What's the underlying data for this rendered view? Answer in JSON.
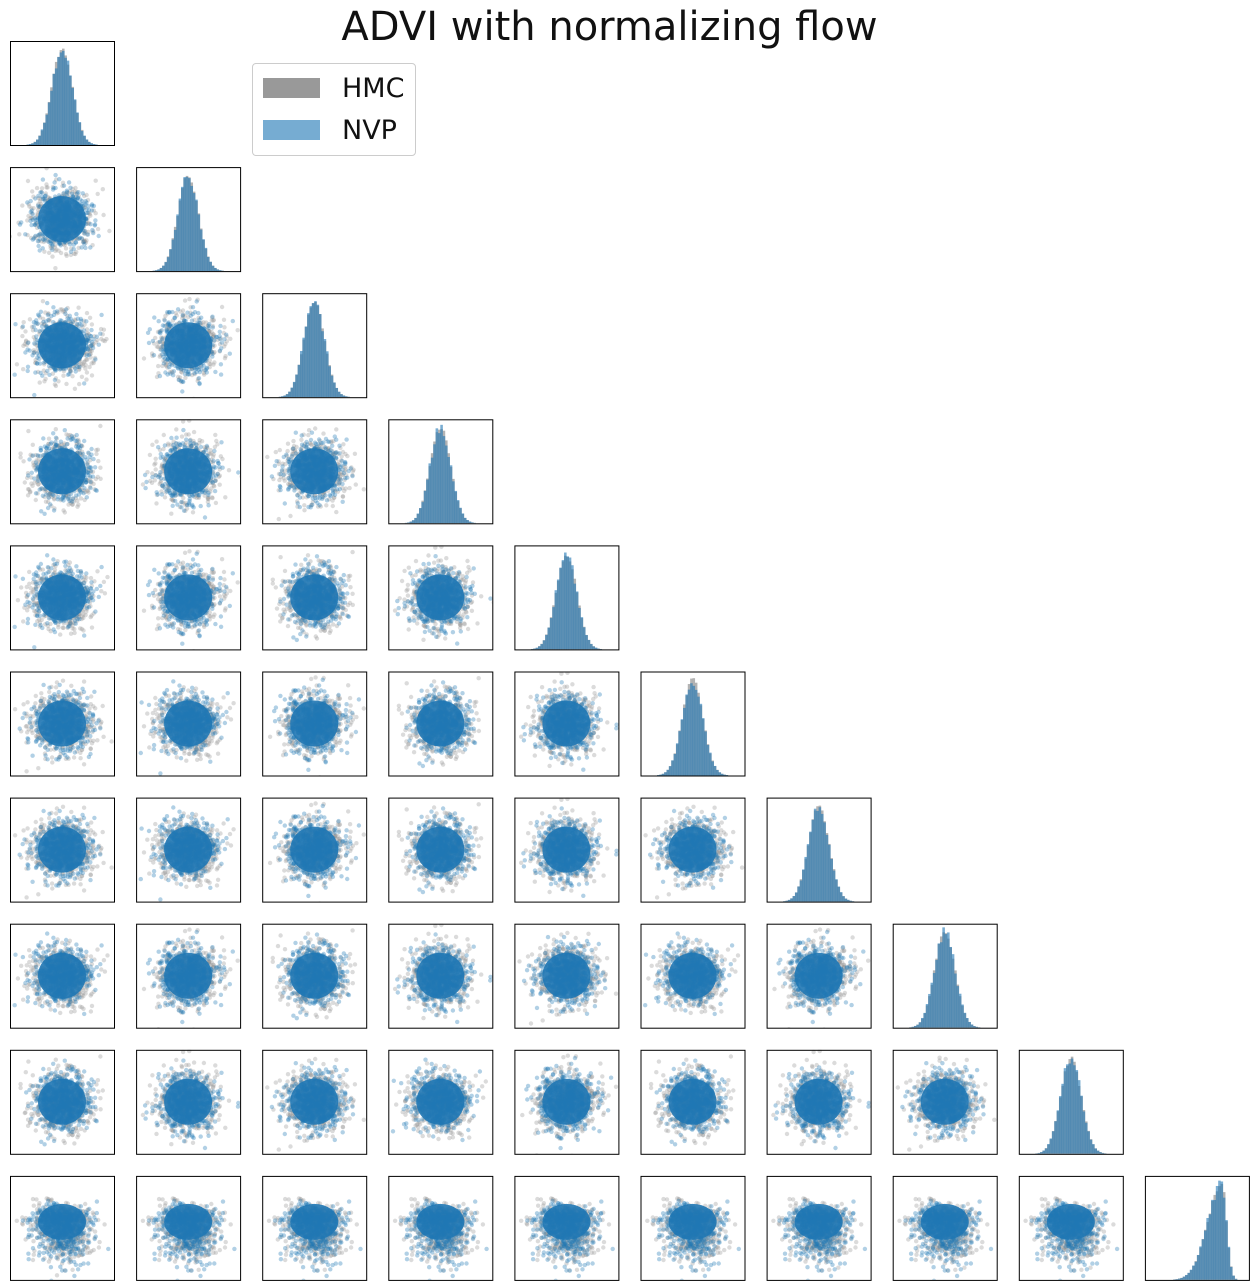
{
  "title": "ADVI with normalizing flow",
  "legend": {
    "items": [
      {
        "label": "HMC",
        "color": "#999999"
      },
      {
        "label": "NVP",
        "color": "#1f77b4"
      }
    ]
  },
  "chart_data": {
    "type": "scatter",
    "layout": "corner-plot",
    "dimensions": 10,
    "diagonal": "histogram",
    "off_diagonal": "scatter",
    "axes_ticks": "none",
    "series": [
      {
        "name": "HMC",
        "color": "#999999"
      },
      {
        "name": "NVP",
        "color": "#1f77b4"
      }
    ],
    "last_dimension_skewed": true
  }
}
